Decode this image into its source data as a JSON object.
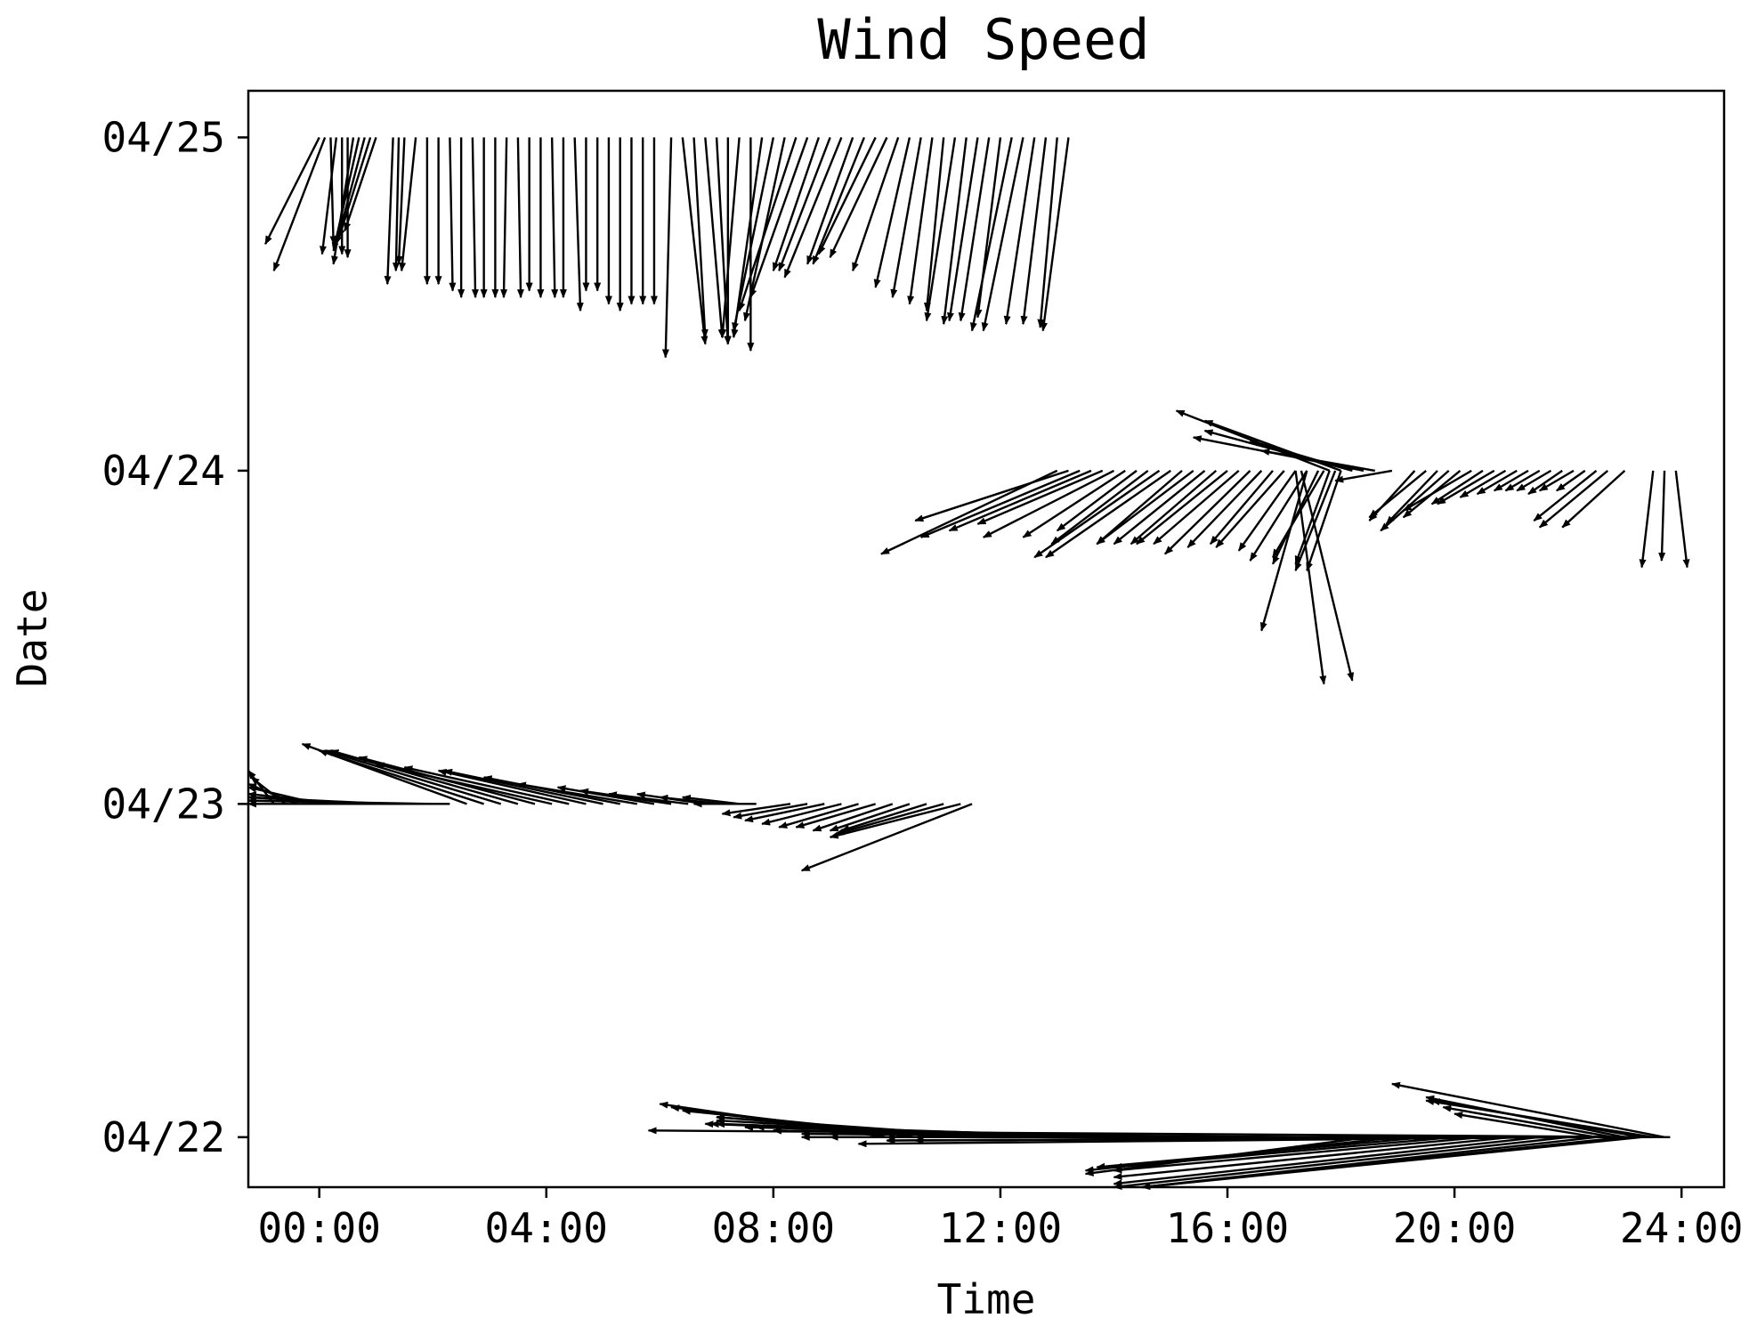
{
  "chart_data": {
    "type": "quiver",
    "title": "Wind Speed",
    "xlabel": "Time",
    "ylabel": "Date",
    "xlim": [
      -1.25,
      24.75
    ],
    "ylim_days_from_0422": [
      -0.15,
      3.14
    ],
    "x_ticks": [
      "00:00",
      "04:00",
      "08:00",
      "12:00",
      "16:00",
      "20:00",
      "24:00"
    ],
    "x_tick_values": [
      0,
      4,
      8,
      12,
      16,
      20,
      24
    ],
    "y_ticks": [
      "04/22",
      "04/23",
      "04/24",
      "04/25"
    ],
    "y_tick_values": [
      0,
      1,
      2,
      3
    ],
    "grid": false,
    "arrow_color": "#000000",
    "series": [
      {
        "date": "04/25",
        "y": 3,
        "arrows": [
          [
            0.0,
            -0.95,
            -0.32
          ],
          [
            0.1,
            -0.9,
            -0.4
          ],
          [
            0.2,
            0.05,
            -0.32
          ],
          [
            0.3,
            -0.25,
            -0.35
          ],
          [
            0.4,
            0.0,
            -0.35
          ],
          [
            0.5,
            0.0,
            -0.36
          ],
          [
            0.6,
            -0.35,
            -0.38
          ],
          [
            0.7,
            -0.45,
            -0.34
          ],
          [
            0.8,
            -0.5,
            -0.32
          ],
          [
            0.9,
            -0.55,
            -0.3
          ],
          [
            1.0,
            -0.55,
            -0.28
          ],
          [
            1.3,
            -0.1,
            -0.44
          ],
          [
            1.4,
            -0.05,
            -0.4
          ],
          [
            1.5,
            -0.1,
            -0.38
          ],
          [
            1.7,
            -0.25,
            -0.4
          ],
          [
            1.9,
            0.0,
            -0.44
          ],
          [
            2.1,
            0.0,
            -0.44
          ],
          [
            2.3,
            0.05,
            -0.46
          ],
          [
            2.5,
            0.0,
            -0.48
          ],
          [
            2.7,
            0.05,
            -0.48
          ],
          [
            2.9,
            0.0,
            -0.48
          ],
          [
            3.1,
            0.0,
            -0.48
          ],
          [
            3.3,
            -0.05,
            -0.48
          ],
          [
            3.5,
            0.05,
            -0.48
          ],
          [
            3.7,
            0.0,
            -0.46
          ],
          [
            3.9,
            0.0,
            -0.48
          ],
          [
            4.1,
            0.05,
            -0.48
          ],
          [
            4.3,
            0.0,
            -0.48
          ],
          [
            4.5,
            0.1,
            -0.52
          ],
          [
            4.7,
            0.0,
            -0.46
          ],
          [
            4.9,
            0.0,
            -0.46
          ],
          [
            5.1,
            0.0,
            -0.5
          ],
          [
            5.3,
            0.0,
            -0.52
          ],
          [
            5.5,
            0.0,
            -0.5
          ],
          [
            5.7,
            0.0,
            -0.5
          ],
          [
            5.9,
            0.0,
            -0.5
          ],
          [
            6.2,
            -0.1,
            -0.66
          ],
          [
            6.4,
            0.4,
            -0.62
          ],
          [
            6.6,
            0.2,
            -0.6
          ],
          [
            6.8,
            0.3,
            -0.6
          ],
          [
            7.0,
            0.2,
            -0.62
          ],
          [
            7.2,
            0.0,
            -0.62
          ],
          [
            7.4,
            -0.3,
            -0.6
          ],
          [
            7.6,
            0.0,
            -0.64
          ],
          [
            7.8,
            -0.5,
            -0.6
          ],
          [
            8.0,
            -0.7,
            -0.58
          ],
          [
            8.2,
            -0.7,
            -0.55
          ],
          [
            8.4,
            -1.0,
            -0.52
          ],
          [
            8.6,
            -1.0,
            -0.48
          ],
          [
            8.8,
            -0.8,
            -0.4
          ],
          [
            9.0,
            -0.9,
            -0.4
          ],
          [
            9.2,
            -1.0,
            -0.42
          ],
          [
            9.4,
            -0.8,
            -0.38
          ],
          [
            9.6,
            -0.9,
            -0.38
          ],
          [
            9.8,
            -1.0,
            -0.35
          ],
          [
            10.0,
            -1.0,
            -0.36
          ],
          [
            10.2,
            -0.8,
            -0.4
          ],
          [
            10.4,
            -0.6,
            -0.45
          ],
          [
            10.6,
            -0.5,
            -0.48
          ],
          [
            10.8,
            -0.4,
            -0.5
          ],
          [
            11.0,
            -0.3,
            -0.52
          ],
          [
            11.2,
            -0.5,
            -0.55
          ],
          [
            11.4,
            -0.4,
            -0.56
          ],
          [
            11.6,
            -0.5,
            -0.55
          ],
          [
            11.8,
            -0.5,
            -0.55
          ],
          [
            12.0,
            -0.4,
            -0.54
          ],
          [
            12.2,
            -0.7,
            -0.58
          ],
          [
            12.4,
            -0.7,
            -0.58
          ],
          [
            12.6,
            -0.5,
            -0.56
          ],
          [
            12.8,
            -0.4,
            -0.56
          ],
          [
            13.0,
            -0.3,
            -0.57
          ],
          [
            13.2,
            -0.45,
            -0.58
          ]
        ]
      },
      {
        "date": "04/24",
        "y": 2,
        "arrows": [
          [
            13.0,
            -3.1,
            -0.25
          ],
          [
            13.2,
            -2.7,
            -0.15
          ],
          [
            13.4,
            -2.8,
            -0.2
          ],
          [
            13.6,
            -2.5,
            -0.18
          ],
          [
            13.8,
            -2.2,
            -0.16
          ],
          [
            14.0,
            -2.3,
            -0.2
          ],
          [
            14.2,
            -1.8,
            -0.2
          ],
          [
            14.4,
            -1.4,
            -0.18
          ],
          [
            14.6,
            -1.7,
            -0.22
          ],
          [
            14.8,
            -2.2,
            -0.26
          ],
          [
            15.0,
            -2.2,
            -0.26
          ],
          [
            15.2,
            -1.5,
            -0.22
          ],
          [
            15.4,
            -1.7,
            -0.22
          ],
          [
            15.6,
            -1.6,
            -0.22
          ],
          [
            15.8,
            -1.5,
            -0.22
          ],
          [
            16.0,
            -1.6,
            -0.22
          ],
          [
            16.2,
            -1.5,
            -0.22
          ],
          [
            16.4,
            -1.5,
            -0.25
          ],
          [
            16.6,
            -1.3,
            -0.23
          ],
          [
            16.8,
            -1.1,
            -0.22
          ],
          [
            17.0,
            -1.2,
            -0.23
          ],
          [
            17.2,
            -1.0,
            -0.24
          ],
          [
            17.4,
            -1.0,
            -0.27
          ],
          [
            17.6,
            -0.8,
            -0.28
          ],
          [
            17.7,
            -0.9,
            -0.26
          ],
          [
            17.8,
            -0.6,
            -0.28
          ],
          [
            17.9,
            -0.7,
            -0.3
          ],
          [
            18.0,
            -0.6,
            -0.3
          ],
          [
            17.4,
            -0.8,
            -0.48
          ],
          [
            17.2,
            0.5,
            -0.64
          ],
          [
            17.3,
            0.9,
            -0.63
          ],
          [
            17.8,
            -2.7,
            0.18
          ],
          [
            18.0,
            -2.4,
            0.15
          ],
          [
            18.2,
            -2.6,
            0.12
          ],
          [
            18.4,
            -3.0,
            0.1
          ],
          [
            18.6,
            -2.0,
            0.06
          ],
          [
            18.2,
            -1.8,
            0.09
          ],
          [
            18.9,
            -1.0,
            -0.03
          ],
          [
            19.3,
            -0.8,
            -0.15
          ],
          [
            19.5,
            -1.0,
            -0.14
          ],
          [
            19.7,
            -0.9,
            -0.16
          ],
          [
            19.9,
            -1.2,
            -0.18
          ],
          [
            20.1,
            -1.0,
            -0.14
          ],
          [
            20.3,
            -1.2,
            -0.12
          ],
          [
            20.5,
            -0.9,
            -0.1
          ],
          [
            20.7,
            -1.0,
            -0.1
          ],
          [
            20.9,
            -0.8,
            -0.08
          ],
          [
            21.1,
            -0.7,
            -0.07
          ],
          [
            21.3,
            -0.6,
            -0.06
          ],
          [
            21.5,
            -0.6,
            -0.06
          ],
          [
            21.7,
            -0.6,
            -0.06
          ],
          [
            21.9,
            -0.6,
            -0.07
          ],
          [
            22.1,
            -0.6,
            -0.06
          ],
          [
            22.3,
            -0.5,
            -0.06
          ],
          [
            22.5,
            -1.1,
            -0.15
          ],
          [
            22.7,
            -1.2,
            -0.17
          ],
          [
            23.0,
            -1.1,
            -0.17
          ],
          [
            23.5,
            -0.2,
            -0.29
          ],
          [
            23.7,
            -0.05,
            -0.27
          ],
          [
            23.9,
            0.2,
            -0.29
          ]
        ]
      },
      {
        "date": "04/23",
        "y": 1,
        "arrows": [
          [
            -0.8,
            -0.6,
            0.1
          ],
          [
            -0.6,
            -0.6,
            0.08
          ],
          [
            -0.4,
            -0.9,
            0.06
          ],
          [
            0.0,
            -1.3,
            0.05
          ],
          [
            0.4,
            -1.7,
            0.03
          ],
          [
            0.8,
            -2.1,
            0.02
          ],
          [
            1.2,
            -2.5,
            0.02
          ],
          [
            1.6,
            -2.9,
            0.01
          ],
          [
            2.0,
            -3.3,
            0.01
          ],
          [
            2.3,
            -3.6,
            0.0
          ],
          [
            2.6,
            -2.9,
            0.18
          ],
          [
            2.9,
            -2.9,
            0.16
          ],
          [
            3.2,
            -3.1,
            0.16
          ],
          [
            3.5,
            -3.3,
            0.16
          ],
          [
            3.8,
            -3.1,
            0.14
          ],
          [
            4.1,
            -3.1,
            0.12
          ],
          [
            4.4,
            -2.9,
            0.11
          ],
          [
            4.7,
            -2.6,
            0.1
          ],
          [
            5.0,
            -2.8,
            0.1
          ],
          [
            5.3,
            -2.4,
            0.08
          ],
          [
            5.6,
            -2.1,
            0.06
          ],
          [
            5.9,
            -1.7,
            0.05
          ],
          [
            6.2,
            -1.6,
            0.04
          ],
          [
            6.5,
            -1.4,
            0.03
          ],
          [
            6.8,
            -1.2,
            0.03
          ],
          [
            7.1,
            -1.1,
            0.02
          ],
          [
            7.4,
            -1.0,
            0.02
          ],
          [
            7.7,
            -1.1,
            0.0
          ],
          [
            8.3,
            -1.2,
            -0.03
          ],
          [
            8.6,
            -1.3,
            -0.04
          ],
          [
            8.9,
            -1.4,
            -0.05
          ],
          [
            9.2,
            -1.4,
            -0.06
          ],
          [
            9.5,
            -1.4,
            -0.07
          ],
          [
            9.8,
            -1.4,
            -0.07
          ],
          [
            10.1,
            -1.4,
            -0.08
          ],
          [
            10.4,
            -1.4,
            -0.08
          ],
          [
            10.7,
            -1.5,
            -0.08
          ],
          [
            11.0,
            -1.9,
            -0.09
          ],
          [
            11.3,
            -2.3,
            -0.1
          ],
          [
            11.5,
            -3.0,
            -0.2
          ]
        ]
      },
      {
        "date": "04/22",
        "y": 0,
        "arrows": [
          [
            10.0,
            -4.0,
            0.1
          ],
          [
            10.5,
            -4.3,
            0.09
          ],
          [
            11.0,
            -4.6,
            0.08
          ],
          [
            11.5,
            -4.5,
            0.06
          ],
          [
            12.0,
            -5.0,
            0.06
          ],
          [
            12.5,
            -5.5,
            0.05
          ],
          [
            13.0,
            -6.2,
            0.04
          ],
          [
            13.5,
            -6.5,
            0.04
          ],
          [
            14.0,
            -7.1,
            0.04
          ],
          [
            14.5,
            -7.0,
            0.03
          ],
          [
            15.0,
            -7.3,
            0.03
          ],
          [
            15.5,
            -7.5,
            0.02
          ],
          [
            16.0,
            -8.0,
            0.02
          ],
          [
            16.5,
            -8.0,
            0.01
          ],
          [
            17.0,
            -8.0,
            0.01
          ],
          [
            17.5,
            -8.5,
            0.01
          ],
          [
            18.0,
            -8.3,
            0.01
          ],
          [
            18.5,
            -8.0,
            0.0
          ],
          [
            19.0,
            -9.0,
            0.0
          ],
          [
            19.5,
            -9.5,
            0.0
          ],
          [
            20.0,
            -9.5,
            0.0
          ],
          [
            20.5,
            -10.0,
            0.0
          ],
          [
            21.0,
            -11.0,
            -0.01
          ],
          [
            21.5,
            -11.5,
            -0.01
          ],
          [
            22.0,
            -12.5,
            -0.02
          ],
          [
            22.5,
            -12.0,
            -0.01
          ],
          [
            23.0,
            -14.0,
            0.0
          ],
          [
            23.5,
            -15.0,
            0.0
          ],
          [
            23.8,
            -18.0,
            0.02
          ],
          [
            18.5,
            -5.0,
            -0.11
          ],
          [
            19.0,
            -5.5,
            -0.1
          ],
          [
            19.5,
            -5.8,
            -0.09
          ],
          [
            20.0,
            -6.0,
            -0.09
          ],
          [
            20.5,
            -6.5,
            -0.1
          ],
          [
            21.0,
            -7.0,
            -0.12
          ],
          [
            21.5,
            -7.5,
            -0.14
          ],
          [
            22.0,
            -8.0,
            -0.16
          ],
          [
            22.5,
            -8.0,
            -0.18
          ],
          [
            23.0,
            -8.5,
            -0.2
          ],
          [
            23.3,
            -8.8,
            -0.21
          ],
          [
            23.0,
            -3.5,
            0.12
          ],
          [
            23.3,
            -3.7,
            0.11
          ],
          [
            23.5,
            -4.0,
            0.11
          ],
          [
            23.7,
            -4.8,
            0.16
          ],
          [
            22.8,
            -3.0,
            0.09
          ],
          [
            22.5,
            -2.5,
            0.07
          ]
        ]
      }
    ]
  }
}
